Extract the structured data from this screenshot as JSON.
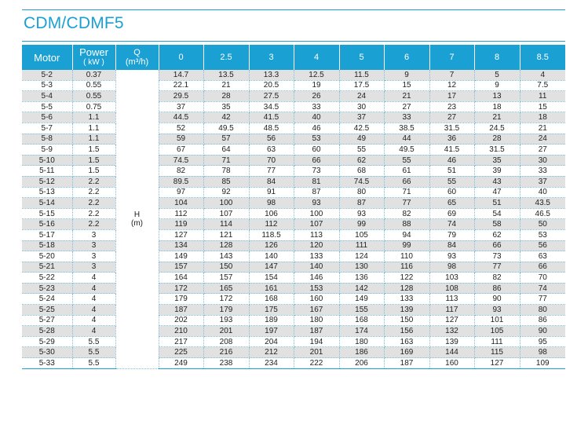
{
  "title": "CDM/CDMF5",
  "header": {
    "motor": "Motor",
    "power": "Power",
    "power_unit": "( kW )",
    "q": "Q",
    "q_unit": "(m³/h)",
    "flows": [
      "0",
      "2.5",
      "3",
      "4",
      "5",
      "6",
      "7",
      "8",
      "8.5"
    ]
  },
  "h_label": "H",
  "h_unit": "(m)",
  "rows": [
    {
      "model": "5-2",
      "power": "0.37",
      "values": [
        "14.7",
        "13.5",
        "13.3",
        "12.5",
        "11.5",
        "9",
        "7",
        "5",
        "4"
      ]
    },
    {
      "model": "5-3",
      "power": "0.55",
      "values": [
        "22.1",
        "21",
        "20.5",
        "19",
        "17.5",
        "15",
        "12",
        "9",
        "7.5"
      ]
    },
    {
      "model": "5-4",
      "power": "0.55",
      "values": [
        "29.5",
        "28",
        "27.5",
        "26",
        "24",
        "21",
        "17",
        "13",
        "11"
      ]
    },
    {
      "model": "5-5",
      "power": "0.75",
      "values": [
        "37",
        "35",
        "34.5",
        "33",
        "30",
        "27",
        "23",
        "18",
        "15"
      ]
    },
    {
      "model": "5-6",
      "power": "1.1",
      "values": [
        "44.5",
        "42",
        "41.5",
        "40",
        "37",
        "33",
        "27",
        "21",
        "18"
      ]
    },
    {
      "model": "5-7",
      "power": "1.1",
      "values": [
        "52",
        "49.5",
        "48.5",
        "46",
        "42.5",
        "38.5",
        "31.5",
        "24.5",
        "21"
      ]
    },
    {
      "model": "5-8",
      "power": "1.1",
      "values": [
        "59",
        "57",
        "56",
        "53",
        "49",
        "44",
        "36",
        "28",
        "24"
      ]
    },
    {
      "model": "5-9",
      "power": "1.5",
      "values": [
        "67",
        "64",
        "63",
        "60",
        "55",
        "49.5",
        "41.5",
        "31.5",
        "27"
      ]
    },
    {
      "model": "5-10",
      "power": "1.5",
      "values": [
        "74.5",
        "71",
        "70",
        "66",
        "62",
        "55",
        "46",
        "35",
        "30"
      ]
    },
    {
      "model": "5-11",
      "power": "1.5",
      "values": [
        "82",
        "78",
        "77",
        "73",
        "68",
        "61",
        "51",
        "39",
        "33"
      ]
    },
    {
      "model": "5-12",
      "power": "2.2",
      "values": [
        "89.5",
        "85",
        "84",
        "81",
        "74.5",
        "66",
        "55",
        "43",
        "37"
      ]
    },
    {
      "model": "5-13",
      "power": "2.2",
      "values": [
        "97",
        "92",
        "91",
        "87",
        "80",
        "71",
        "60",
        "47",
        "40"
      ]
    },
    {
      "model": "5-14",
      "power": "2.2",
      "values": [
        "104",
        "100",
        "98",
        "93",
        "87",
        "77",
        "65",
        "51",
        "43.5"
      ]
    },
    {
      "model": "5-15",
      "power": "2.2",
      "values": [
        "112",
        "107",
        "106",
        "100",
        "93",
        "82",
        "69",
        "54",
        "46.5"
      ]
    },
    {
      "model": "5-16",
      "power": "2.2",
      "values": [
        "119",
        "114",
        "112",
        "107",
        "99",
        "88",
        "74",
        "58",
        "50"
      ]
    },
    {
      "model": "5-17",
      "power": "3",
      "values": [
        "127",
        "121",
        "118.5",
        "113",
        "105",
        "94",
        "79",
        "62",
        "53"
      ]
    },
    {
      "model": "5-18",
      "power": "3",
      "values": [
        "134",
        "128",
        "126",
        "120",
        "111",
        "99",
        "84",
        "66",
        "56"
      ]
    },
    {
      "model": "5-20",
      "power": "3",
      "values": [
        "149",
        "143",
        "140",
        "133",
        "124",
        "110",
        "93",
        "73",
        "63"
      ]
    },
    {
      "model": "5-21",
      "power": "3",
      "values": [
        "157",
        "150",
        "147",
        "140",
        "130",
        "116",
        "98",
        "77",
        "66"
      ]
    },
    {
      "model": "5-22",
      "power": "4",
      "values": [
        "164",
        "157",
        "154",
        "146",
        "136",
        "122",
        "103",
        "82",
        "70"
      ]
    },
    {
      "model": "5-23",
      "power": "4",
      "values": [
        "172",
        "165",
        "161",
        "153",
        "142",
        "128",
        "108",
        "86",
        "74"
      ]
    },
    {
      "model": "5-24",
      "power": "4",
      "values": [
        "179",
        "172",
        "168",
        "160",
        "149",
        "133",
        "113",
        "90",
        "77"
      ]
    },
    {
      "model": "5-25",
      "power": "4",
      "values": [
        "187",
        "179",
        "175",
        "167",
        "155",
        "139",
        "117",
        "93",
        "80"
      ]
    },
    {
      "model": "5-27",
      "power": "4",
      "values": [
        "202",
        "193",
        "189",
        "180",
        "168",
        "150",
        "127",
        "101",
        "86"
      ]
    },
    {
      "model": "5-28",
      "power": "4",
      "values": [
        "210",
        "201",
        "197",
        "187",
        "174",
        "156",
        "132",
        "105",
        "90"
      ]
    },
    {
      "model": "5-29",
      "power": "5.5",
      "values": [
        "217",
        "208",
        "204",
        "194",
        "180",
        "163",
        "139",
        "111",
        "95"
      ]
    },
    {
      "model": "5-30",
      "power": "5.5",
      "values": [
        "225",
        "216",
        "212",
        "201",
        "186",
        "169",
        "144",
        "115",
        "98"
      ]
    },
    {
      "model": "5-33",
      "power": "5.5",
      "values": [
        "249",
        "238",
        "234",
        "222",
        "206",
        "187",
        "160",
        "127",
        "109"
      ]
    }
  ]
}
